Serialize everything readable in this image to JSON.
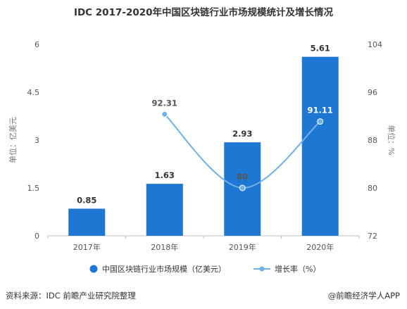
{
  "colors": {
    "bar": "#1f77d4",
    "line": "#6fb1ea",
    "line_label": "#555555",
    "grid": "#d9d9d9"
  },
  "chart_data": {
    "type": "bar",
    "title": "IDC 2017-2020年中国区块链行业市场规模统计及增长情况",
    "categories": [
      "2017年",
      "2018年",
      "2019年",
      "2020年"
    ],
    "y_left": {
      "label": "单位：亿美元",
      "ylim": [
        0,
        6
      ],
      "ticks": [
        "0",
        "1.5",
        "3",
        "4.5",
        "6"
      ]
    },
    "y_right": {
      "label": "单位：%",
      "ylim": [
        72,
        104
      ],
      "ticks": [
        "72",
        "80",
        "88",
        "96",
        "104"
      ]
    },
    "series": [
      {
        "name": "中国区块链行业市场规模（亿美元）",
        "type": "bar",
        "axis": "left",
        "values": [
          0.85,
          1.63,
          2.93,
          5.61
        ],
        "labels": [
          "0.85",
          "1.63",
          "2.93",
          "5.61"
        ]
      },
      {
        "name": "增长率（%）",
        "type": "line",
        "axis": "right",
        "values": [
          null,
          92.31,
          80,
          91.11
        ],
        "labels": [
          "",
          "92.31",
          "80",
          "91.11"
        ]
      }
    ],
    "grid": false,
    "legend_position": "bottom"
  },
  "footer": {
    "source": "资料来源：IDC 前瞻产业研究院整理",
    "credit": "@前瞻经济学人APP"
  }
}
